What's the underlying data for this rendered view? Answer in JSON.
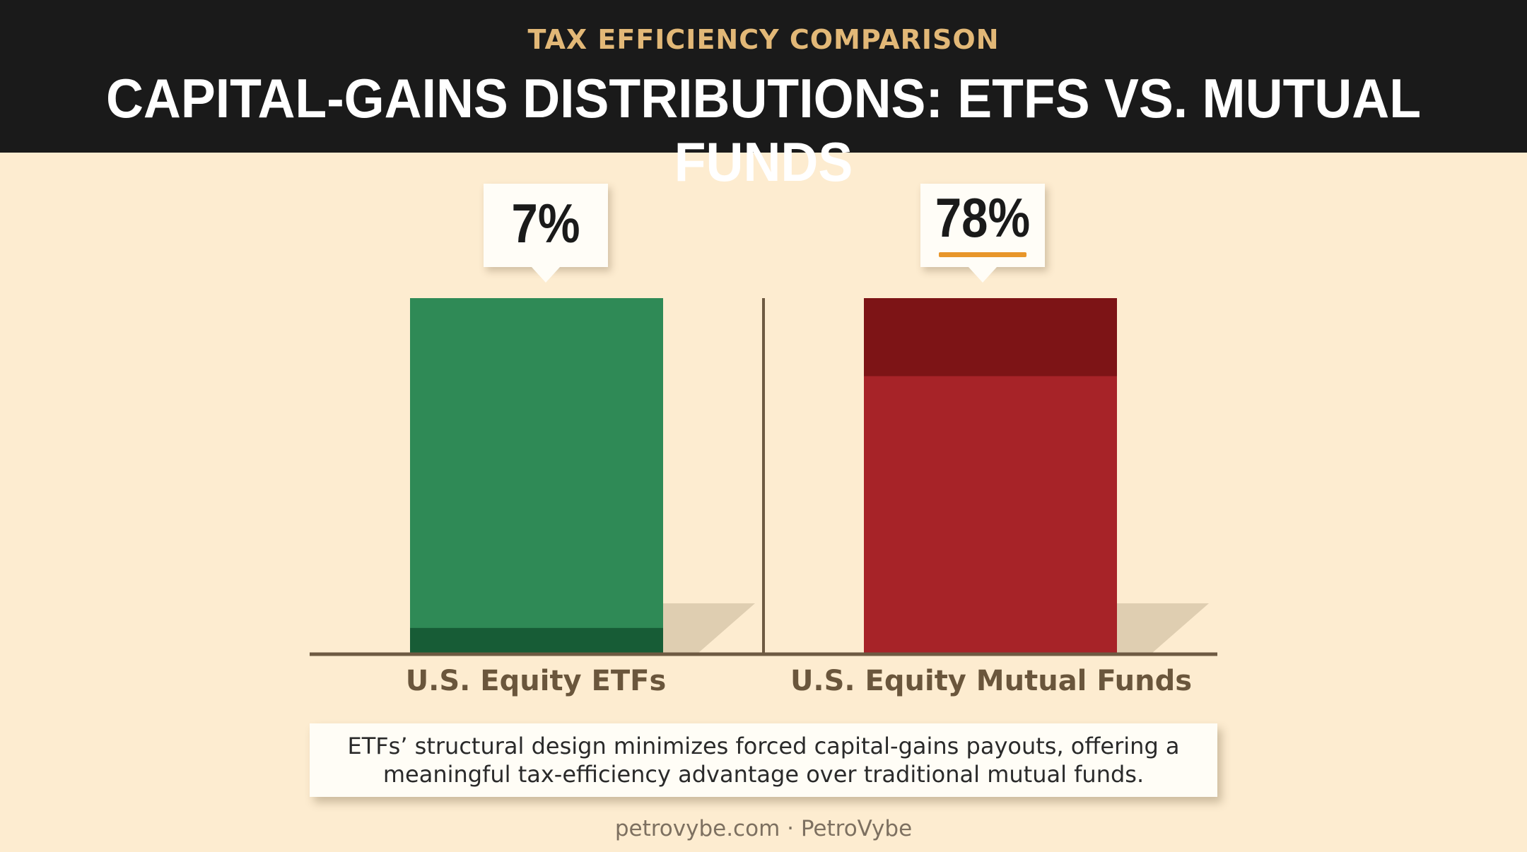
{
  "header": {
    "kicker": "TAX EFFICIENCY COMPARISON",
    "title": "CAPITAL-GAINS DISTRIBUTIONS: ETFS VS. MUTUAL FUNDS"
  },
  "chart_data": {
    "type": "bar",
    "categories": [
      "U.S. Equity ETFs",
      "U.S. Equity Mutual Funds"
    ],
    "values": [
      7,
      78
    ],
    "value_labels": [
      "7%",
      "78%"
    ],
    "ylim": [
      0,
      100
    ],
    "colors": [
      "#2f8a56",
      "#a72328"
    ],
    "title": "",
    "xlabel": "",
    "ylabel": ""
  },
  "caption": "ETFs’ structural design minimizes forced capital-gains payouts, offering a meaningful tax-efficiency advantage over traditional mutual funds.",
  "footer": "petrovybe.com · PetroVybe"
}
